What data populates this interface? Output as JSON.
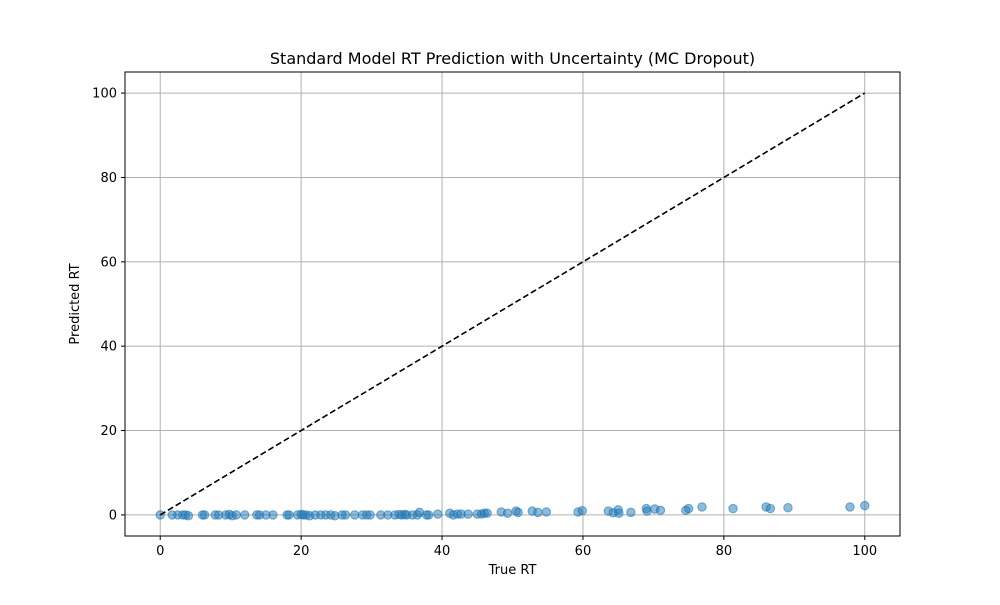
{
  "chart_data": {
    "type": "scatter",
    "title": "Standard Model RT Prediction with Uncertainty (MC Dropout)",
    "xlabel": "True RT",
    "ylabel": "Predicted RT",
    "xlim": [
      -5,
      105
    ],
    "ylim": [
      -5,
      105
    ],
    "xticks": [
      0,
      20,
      40,
      60,
      80,
      100
    ],
    "yticks": [
      0,
      20,
      40,
      60,
      80,
      100
    ],
    "grid": true,
    "colors": {
      "points": "#1f77b4",
      "reference": "#000000",
      "grid": "#b0b0b0"
    },
    "series": [
      {
        "points": [
          [
            0,
            0
          ],
          [
            1.7,
            0
          ],
          [
            2.5,
            0
          ],
          [
            3.2,
            0
          ],
          [
            3.6,
            0
          ],
          [
            4.0,
            -0.2
          ],
          [
            6.0,
            0
          ],
          [
            6.3,
            0
          ],
          [
            7.8,
            0
          ],
          [
            8.3,
            0
          ],
          [
            9.3,
            0
          ],
          [
            9.8,
            0.1
          ],
          [
            10.2,
            -0.2
          ],
          [
            10.8,
            0
          ],
          [
            12.0,
            0
          ],
          [
            13.7,
            0
          ],
          [
            14.1,
            0
          ],
          [
            15.0,
            0
          ],
          [
            16.0,
            0
          ],
          [
            18.0,
            0
          ],
          [
            18.3,
            0
          ],
          [
            19.5,
            0
          ],
          [
            20.0,
            0.1
          ],
          [
            20.3,
            0
          ],
          [
            20.7,
            0
          ],
          [
            21.2,
            -0.2
          ],
          [
            22.0,
            0
          ],
          [
            22.8,
            0
          ],
          [
            23.5,
            0
          ],
          [
            24.2,
            0
          ],
          [
            24.8,
            -0.2
          ],
          [
            25.8,
            0
          ],
          [
            26.3,
            0
          ],
          [
            27.6,
            0
          ],
          [
            28.7,
            0
          ],
          [
            29.3,
            0
          ],
          [
            29.8,
            0
          ],
          [
            31.3,
            0
          ],
          [
            32.3,
            0
          ],
          [
            33.3,
            0
          ],
          [
            33.9,
            0.1
          ],
          [
            34.3,
            0
          ],
          [
            34.7,
            0.1
          ],
          [
            35.0,
            0
          ],
          [
            35.8,
            0
          ],
          [
            36.5,
            0
          ],
          [
            36.8,
            0.6
          ],
          [
            37.8,
            0
          ],
          [
            38.1,
            0
          ],
          [
            39.4,
            0.2
          ],
          [
            41.1,
            0.4
          ],
          [
            41.6,
            0
          ],
          [
            42.2,
            0.2
          ],
          [
            42.7,
            0.2
          ],
          [
            43.7,
            0.2
          ],
          [
            45.0,
            0.2
          ],
          [
            45.6,
            0.2
          ],
          [
            46.0,
            0.4
          ],
          [
            46.4,
            0.4
          ],
          [
            48.4,
            0.7
          ],
          [
            49.3,
            0.4
          ],
          [
            50.5,
            0.9
          ],
          [
            50.8,
            0.6
          ],
          [
            52.8,
            0.9
          ],
          [
            53.6,
            0.6
          ],
          [
            54.8,
            0.7
          ],
          [
            59.3,
            0.7
          ],
          [
            59.9,
            1.0
          ],
          [
            63.6,
            0.9
          ],
          [
            64.3,
            0.5
          ],
          [
            65.0,
            1.2
          ],
          [
            65.1,
            0.4
          ],
          [
            66.8,
            0.6
          ],
          [
            69.0,
            1.5
          ],
          [
            69.1,
            0.9
          ],
          [
            70.2,
            1.4
          ],
          [
            71.0,
            1.1
          ],
          [
            74.6,
            1.1
          ],
          [
            75.0,
            1.5
          ],
          [
            76.9,
            1.9
          ],
          [
            81.3,
            1.5
          ],
          [
            86.0,
            1.9
          ],
          [
            86.6,
            1.5
          ],
          [
            89.1,
            1.7
          ],
          [
            97.9,
            1.9
          ],
          [
            100.0,
            2.2
          ]
        ]
      }
    ],
    "reference_line": {
      "x": [
        0,
        100
      ],
      "y": [
        0,
        100
      ],
      "style": "dashed"
    }
  }
}
